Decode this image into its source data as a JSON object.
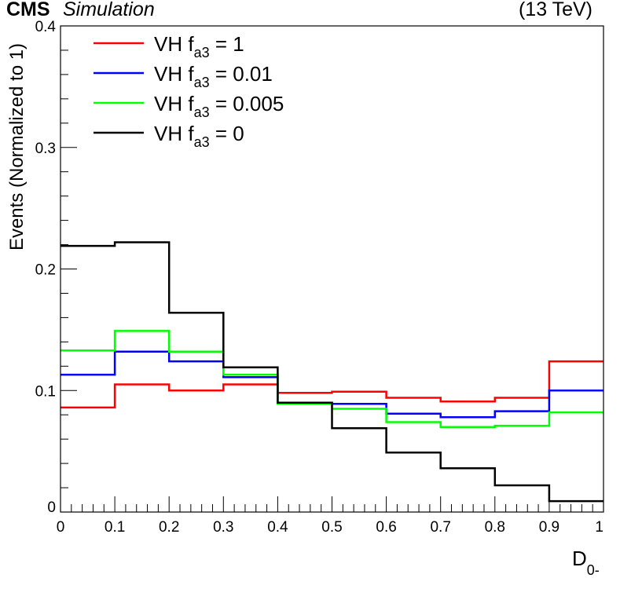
{
  "header": {
    "experiment": "CMS",
    "label": "Simulation",
    "energy": "(13 TeV)"
  },
  "chart_data": {
    "type": "step",
    "xlabel_main": "D",
    "xlabel_sub": "0-",
    "ylabel": "Events (Normalized to 1)",
    "xlim": [
      0,
      1
    ],
    "ylim": [
      0,
      0.4
    ],
    "x_ticks": [
      {
        "value": 0,
        "label": "0"
      },
      {
        "value": 0.1,
        "label": "0.1"
      },
      {
        "value": 0.2,
        "label": "0.2"
      },
      {
        "value": 0.3,
        "label": "0.3"
      },
      {
        "value": 0.4,
        "label": "0.4"
      },
      {
        "value": 0.5,
        "label": "0.5"
      },
      {
        "value": 0.6,
        "label": "0.6"
      },
      {
        "value": 0.7,
        "label": "0.7"
      },
      {
        "value": 0.8,
        "label": "0.8"
      },
      {
        "value": 0.9,
        "label": "0.9"
      },
      {
        "value": 1,
        "label": "1"
      }
    ],
    "y_ticks": [
      {
        "value": 0,
        "label": "0"
      },
      {
        "value": 0.1,
        "label": "0.1"
      },
      {
        "value": 0.2,
        "label": "0.2"
      },
      {
        "value": 0.3,
        "label": "0.3"
      },
      {
        "value": 0.4,
        "label": "0.4"
      }
    ],
    "bin_edges": [
      0,
      0.1,
      0.2,
      0.3,
      0.4,
      0.5,
      0.6,
      0.7,
      0.8,
      0.9,
      1.0
    ],
    "series": [
      {
        "name": "VH f_a3 = 1",
        "legend_main": "VH f",
        "legend_sub": "a3",
        "legend_value": " = 1",
        "color": "#ff0000",
        "values": [
          0.086,
          0.105,
          0.1,
          0.105,
          0.098,
          0.099,
          0.094,
          0.091,
          0.094,
          0.124
        ]
      },
      {
        "name": "VH f_a3 = 0.01",
        "legend_main": "VH f",
        "legend_sub": "a3",
        "legend_value": " = 0.01",
        "color": "#0000ff",
        "values": [
          0.113,
          0.132,
          0.124,
          0.111,
          0.09,
          0.089,
          0.081,
          0.078,
          0.083,
          0.1
        ]
      },
      {
        "name": "VH f_a3 = 0.005",
        "legend_main": "VH f",
        "legend_sub": "a3",
        "legend_value": " = 0.005",
        "color": "#00ff00",
        "values": [
          0.133,
          0.149,
          0.132,
          0.113,
          0.089,
          0.085,
          0.074,
          0.07,
          0.071,
          0.082
        ]
      },
      {
        "name": "VH f_a3 = 0",
        "legend_main": "VH f",
        "legend_sub": "a3",
        "legend_value": " = 0",
        "color": "#000000",
        "values": [
          0.219,
          0.222,
          0.164,
          0.119,
          0.09,
          0.069,
          0.049,
          0.036,
          0.022,
          0.009
        ]
      }
    ],
    "legend_position": "top-left"
  }
}
